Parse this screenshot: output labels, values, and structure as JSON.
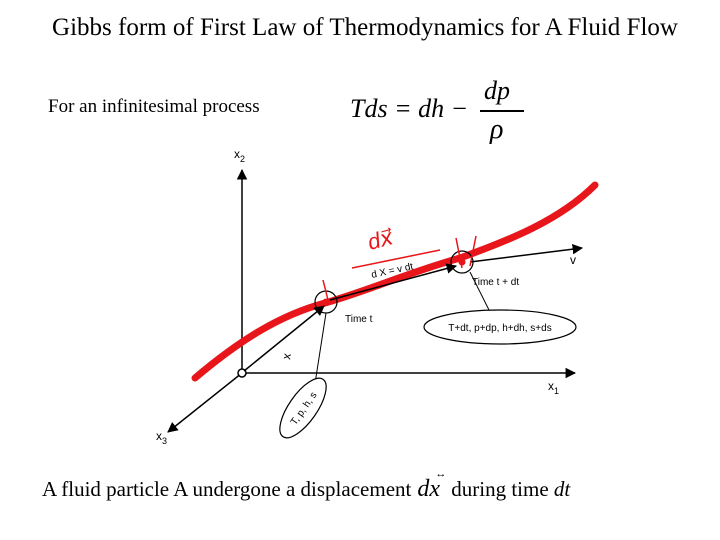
{
  "title": "Gibbs form of First Law of Thermodynamics for A Fluid Flow",
  "intro_text": "For an infinitesimal process",
  "equation": {
    "lhs": "Tds = dh −",
    "numerator": "dp",
    "denominator": "ρ"
  },
  "figure": {
    "axis_x1": "x",
    "axis_x1_sub": "1",
    "axis_x2": "x",
    "axis_x2_sub": "2",
    "axis_x3": "x",
    "axis_x3_sub": "3",
    "position_vector": "x",
    "velocity_label": "v",
    "displacement_label": "d X = v dt",
    "time_t_label": "Time t",
    "time_t_dt_label": "Time t + dt",
    "state_t_dt": "T+dt, p+dp, h+dh, s+ds",
    "state_t": "T, p, h, s",
    "handwritten_note": "dx⃗",
    "colors": {
      "path": "#e8161a",
      "ink": "#000000"
    }
  },
  "caption": {
    "before": "A fluid particle A undergone a displacement",
    "symbol": "dx",
    "symbol_accent": "↔",
    "after": "during time",
    "dt": "dt"
  }
}
